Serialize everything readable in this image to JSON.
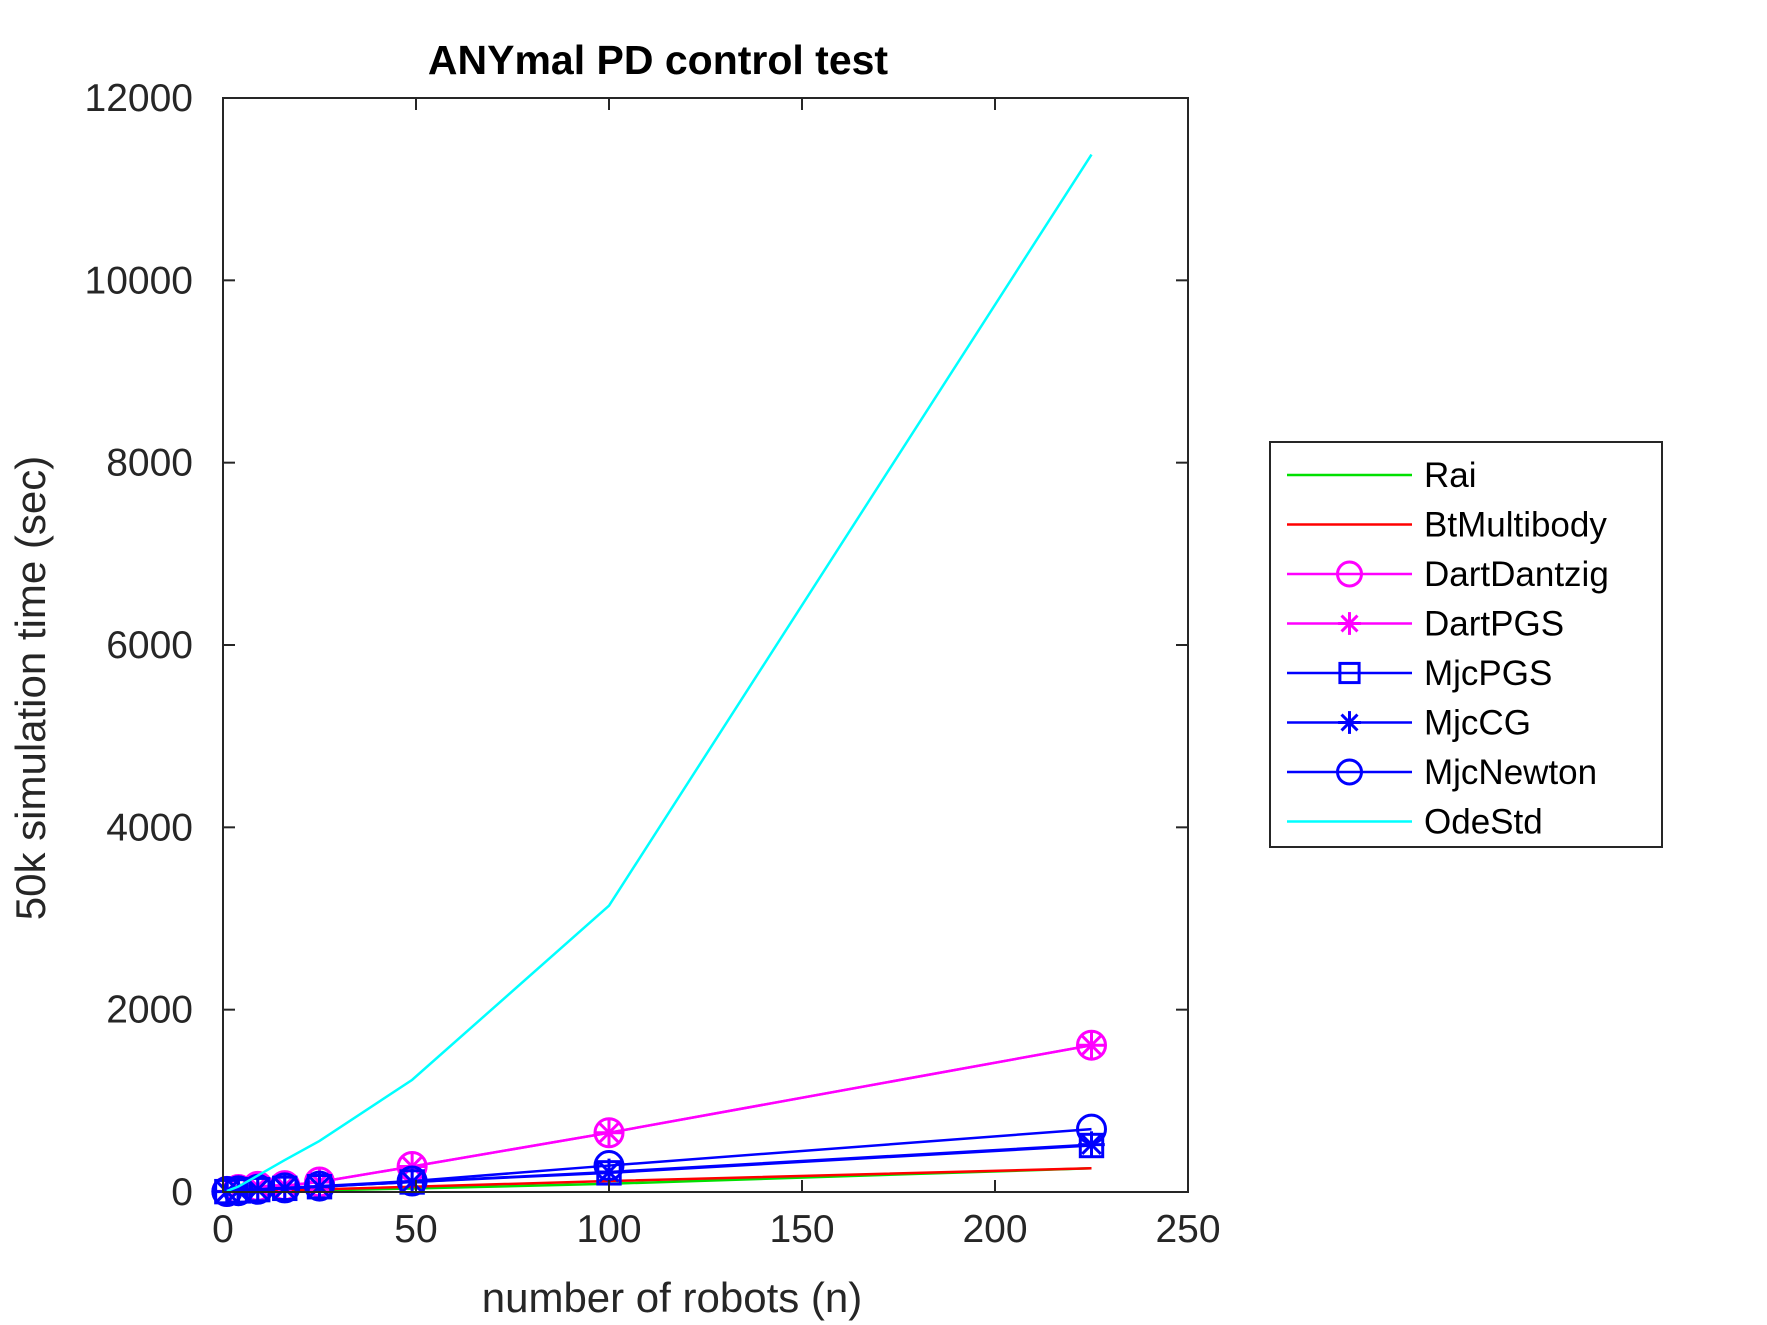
{
  "chart_data": {
    "type": "line",
    "title": "ANYmal PD control test",
    "xlabel": "number of robots (n)",
    "ylabel": "50k simulation time (sec)",
    "xlim": [
      0,
      250
    ],
    "ylim": [
      0,
      12000
    ],
    "xticks": [
      0,
      50,
      100,
      150,
      200,
      250
    ],
    "yticks": [
      0,
      2000,
      4000,
      6000,
      8000,
      10000,
      12000
    ],
    "grid": false,
    "legend_position": "outside-right",
    "x": [
      1,
      4,
      9,
      16,
      25,
      49,
      100,
      225
    ],
    "series": [
      {
        "name": "Rai",
        "color": "#00e000",
        "marker": "none",
        "values": [
          1,
          3,
          7,
          12,
          18,
          38,
          90,
          260
        ]
      },
      {
        "name": "BtMultibody",
        "color": "#ff0000",
        "marker": "none",
        "values": [
          2,
          5,
          11,
          19,
          29,
          58,
          120,
          260
        ]
      },
      {
        "name": "DartDantzig",
        "color": "#ff00ff",
        "marker": "circle",
        "values": [
          7,
          28,
          62,
          70,
          110,
          280,
          650,
          1610
        ]
      },
      {
        "name": "DartPGS",
        "color": "#ff00ff",
        "marker": "asterisk",
        "values": [
          7,
          28,
          62,
          70,
          110,
          280,
          650,
          1610
        ]
      },
      {
        "name": "MjcPGS",
        "color": "#0000ff",
        "marker": "square",
        "values": [
          4,
          12,
          26,
          40,
          58,
          110,
          210,
          510
        ]
      },
      {
        "name": "MjcCG",
        "color": "#0000ff",
        "marker": "asterisk",
        "values": [
          4,
          12,
          26,
          40,
          58,
          110,
          220,
          520
        ]
      },
      {
        "name": "MjcNewton",
        "color": "#0000ff",
        "marker": "circle",
        "values": [
          5,
          14,
          30,
          45,
          65,
          120,
          290,
          690
        ]
      },
      {
        "name": "OdeStd",
        "color": "#00ffff",
        "marker": "none",
        "values": [
          10,
          60,
          180,
          350,
          560,
          1230,
          3140,
          11380
        ]
      }
    ]
  }
}
